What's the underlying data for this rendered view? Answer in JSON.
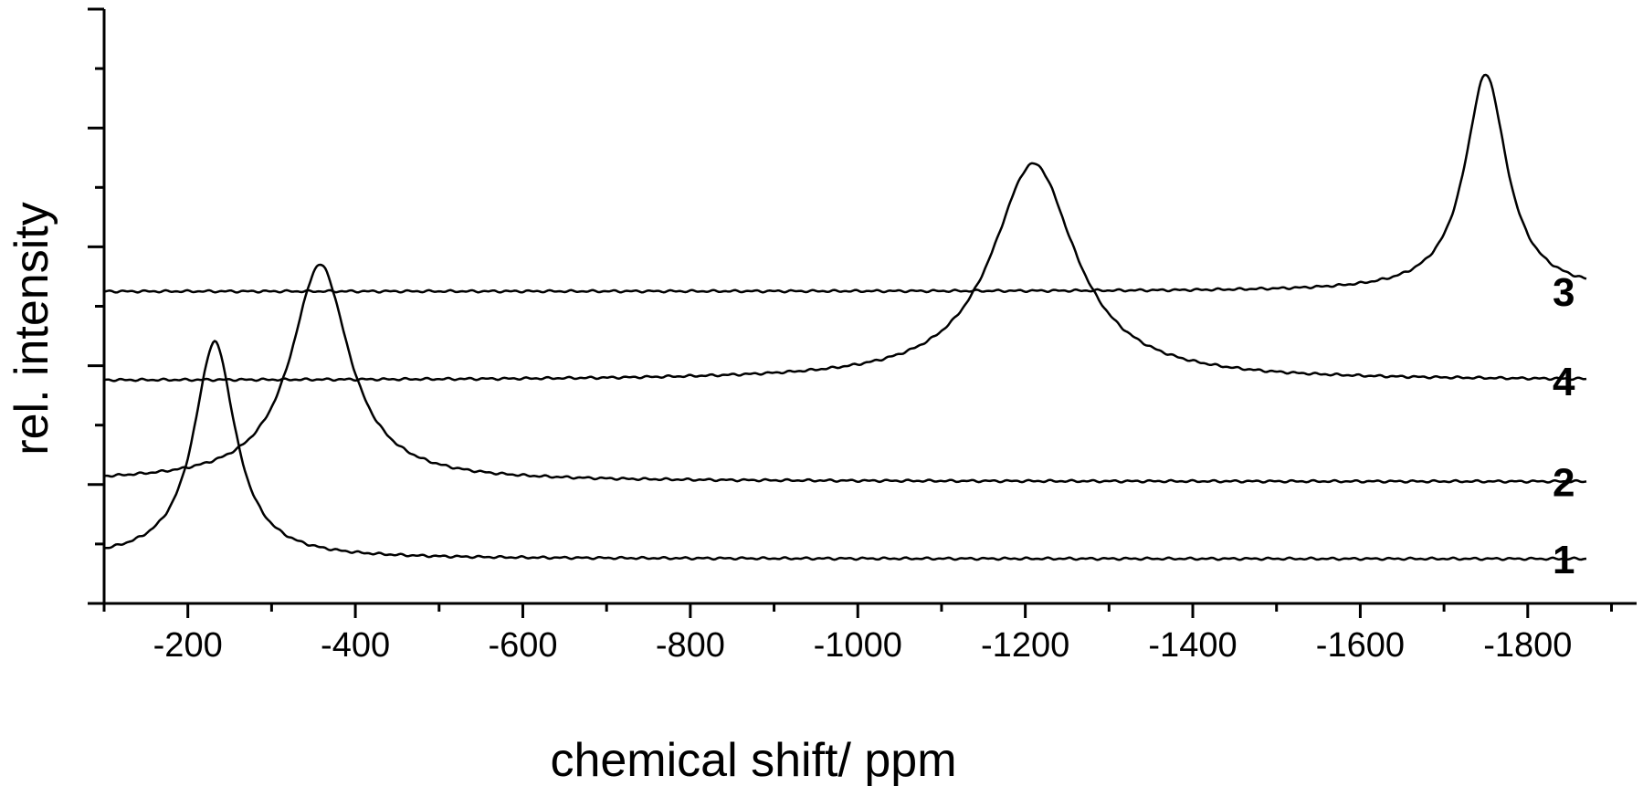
{
  "chart_data": {
    "type": "line",
    "title": "",
    "xlabel": "chemical shift/ ppm",
    "ylabel": "rel. intensity",
    "xlim": [
      -100,
      -1930
    ],
    "x_ticks": [
      -200,
      -400,
      -600,
      -800,
      -1000,
      -1200,
      -1400,
      -1600,
      -1800
    ],
    "x_tick_labels": [
      "-200",
      "-400",
      "-600",
      "-800",
      "-1000",
      "-1200",
      "-1400",
      "-1600",
      "-1800"
    ],
    "ylim": [
      0,
      10
    ],
    "y_major_ticks": [
      0,
      2,
      4,
      6,
      8,
      10
    ],
    "y_minor_ticks": [
      1,
      3,
      5,
      7,
      9
    ],
    "y_tick_labels_shown": false,
    "grid": false,
    "line_color": "#000000",
    "series": [
      {
        "name": "1",
        "baseline": 0.75,
        "peak_x": -232,
        "peak_height": 3.65,
        "peak_width": 30,
        "x_range": [
          -100,
          -1870
        ]
      },
      {
        "name": "2",
        "baseline": 2.05,
        "peak_x": -358,
        "peak_height": 3.65,
        "peak_width": 42,
        "left_wing": 0.45,
        "x_range": [
          -100,
          -1870
        ]
      },
      {
        "name": "4",
        "baseline": 3.75,
        "peak_x": -1210,
        "peak_height": 3.65,
        "peak_width": 60,
        "x_range": [
          -100,
          -1870
        ]
      },
      {
        "name": "3",
        "baseline": 5.25,
        "peak_x": -1750,
        "peak_height": 3.65,
        "peak_width": 30,
        "x_range": [
          -100,
          -1870
        ]
      }
    ]
  }
}
